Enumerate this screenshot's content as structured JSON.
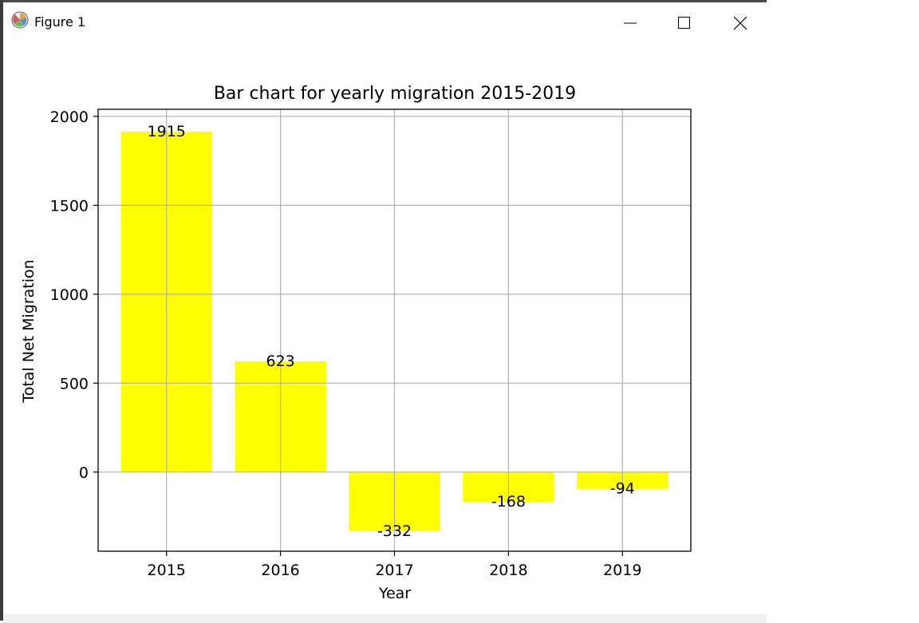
{
  "window": {
    "title": "Figure 1",
    "icons": {
      "app": "matplotlib-icon",
      "minimize": "minimize-icon",
      "maximize": "maximize-icon",
      "close": "close-icon"
    }
  },
  "colors": {
    "bar": "#ffff00",
    "grid": "#b0b0b0",
    "axis": "#000000"
  },
  "chart_data": {
    "type": "bar",
    "title": "Bar chart for yearly migration 2015-2019",
    "xlabel": "Year",
    "ylabel": "Total Net Migration",
    "categories": [
      "2015",
      "2016",
      "2017",
      "2018",
      "2019"
    ],
    "values": [
      1915,
      623,
      -332,
      -168,
      -94
    ],
    "ylim": [
      -445,
      2040
    ],
    "yticks": [
      0,
      500,
      1000,
      1500,
      2000
    ],
    "grid": true,
    "bar_color": "#ffff00"
  }
}
